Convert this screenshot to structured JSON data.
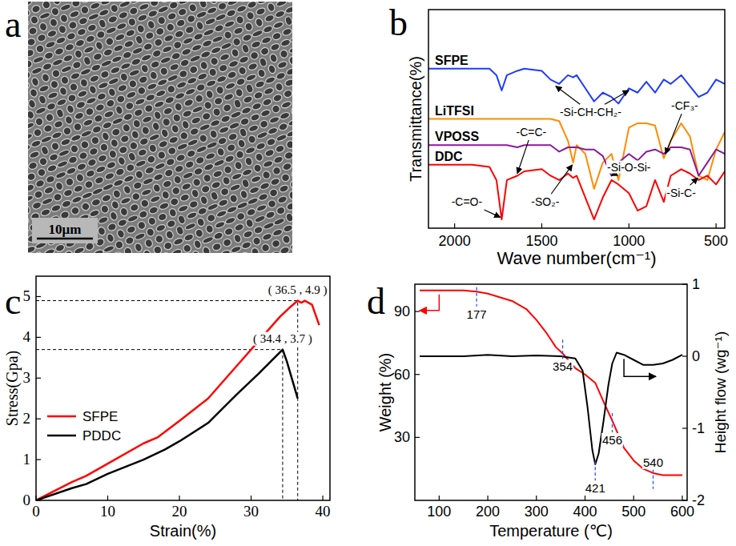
{
  "chart_data": [
    {
      "type": "image",
      "panel": "a",
      "scale_bar": "10μm"
    },
    {
      "type": "line",
      "panel": "b",
      "x_label": "Wave number(cm⁻¹)",
      "y_label": "Transmittance(%)",
      "xlim": [
        2150,
        450
      ],
      "xticks": [
        2000,
        1500,
        1000,
        500
      ],
      "ylim": [
        0,
        100
      ],
      "tick_labels": "x",
      "x": [
        2150,
        2000,
        1900,
        1800,
        1760,
        1730,
        1700,
        1640,
        1600,
        1500,
        1450,
        1400,
        1350,
        1320,
        1300,
        1250,
        1200,
        1150,
        1100,
        1060,
        1000,
        950,
        900,
        850,
        800,
        760,
        700,
        650,
        600,
        550,
        500,
        450
      ],
      "series": [
        {
          "name": "SFPE",
          "color": "#1f3cff",
          "values": [
            73,
            73,
            73,
            73,
            70,
            63,
            70,
            72,
            73,
            72,
            68,
            66,
            70,
            69,
            70,
            64,
            58,
            62,
            60,
            57,
            64,
            62,
            67,
            62,
            68,
            66,
            70,
            65,
            60,
            62,
            68,
            66
          ]
        },
        {
          "name": "LiTFSI",
          "color": "#ff8c00",
          "values": [
            50,
            50,
            50,
            50,
            50,
            50,
            50,
            50,
            50,
            50,
            50,
            49,
            40,
            30,
            38,
            34,
            18,
            30,
            34,
            22,
            46,
            48,
            48,
            47,
            32,
            40,
            48,
            42,
            24,
            22,
            36,
            44
          ]
        },
        {
          "name": "VPOSS",
          "color": "#8b1a9b",
          "values": [
            38,
            38,
            38,
            38,
            38,
            38,
            38,
            37,
            38,
            38,
            38,
            35,
            37,
            37,
            37,
            36,
            36,
            33,
            24,
            30,
            34,
            31,
            35,
            36,
            34,
            37,
            37,
            36,
            24,
            30,
            36,
            34
          ]
        },
        {
          "name": "DDC",
          "color": "#ff0000",
          "values": [
            29,
            29,
            29,
            28,
            22,
            4,
            22,
            24,
            26,
            27,
            24,
            22,
            25,
            23,
            24,
            14,
            4,
            14,
            22,
            20,
            16,
            8,
            10,
            22,
            12,
            24,
            27,
            25,
            22,
            24,
            20,
            26
          ]
        }
      ],
      "annotations": [
        {
          "text": "-Si-CH-CH₂-",
          "x": 1220,
          "y": 53,
          "arrows": [
            [
              1420,
              65
            ],
            [
              1000,
              63
            ]
          ]
        },
        {
          "text": "-SO₂-",
          "x": 1480,
          "y": 12,
          "arrows": [
            [
              1325,
              29
            ]
          ]
        },
        {
          "text": "-CF₃-",
          "x": 680,
          "y": 56,
          "arrows": [
            [
              790,
              34
            ]
          ]
        },
        {
          "text": "-Si-O-Si-",
          "x": 1000,
          "y": 28,
          "arrows": [
            [
              1100,
              24
            ]
          ]
        },
        {
          "text": "-Si-C-",
          "x": 700,
          "y": 16,
          "arrows": [
            [
              605,
              23
            ]
          ]
        },
        {
          "text": "-C=O-",
          "x": 1930,
          "y": 12,
          "arrows": [
            [
              1738,
              5
            ]
          ]
        },
        {
          "text": "-C=C-",
          "x": 1560,
          "y": 44,
          "arrows": [
            [
              1640,
              25
            ]
          ]
        }
      ]
    },
    {
      "type": "line",
      "panel": "c",
      "x_label": "Strain(%)",
      "y_label": "Stress(Gpa)",
      "xlim": [
        0,
        41
      ],
      "xticks": [
        0,
        10,
        20,
        30,
        40
      ],
      "ylim": [
        0,
        5.5
      ],
      "yticks": [
        0,
        1,
        2,
        3,
        4,
        5
      ],
      "legend": "left",
      "series": [
        {
          "name": "SFPE",
          "color": "#ff0000",
          "x": [
            0,
            5,
            7,
            10,
            15,
            17,
            20,
            24,
            28,
            31,
            34,
            35.5,
            36.5,
            37,
            37.5,
            38.5,
            39.5
          ],
          "values": [
            0,
            0.45,
            0.6,
            0.9,
            1.4,
            1.55,
            1.95,
            2.5,
            3.3,
            3.9,
            4.5,
            4.75,
            4.9,
            4.85,
            4.9,
            4.8,
            4.3
          ]
        },
        {
          "name": "PDDC",
          "color": "#000000",
          "x": [
            0,
            5,
            7,
            10,
            15,
            18,
            20,
            24,
            28,
            31,
            34.4,
            35,
            35.5,
            36,
            36.5
          ],
          "values": [
            0,
            0.3,
            0.4,
            0.65,
            1.0,
            1.25,
            1.45,
            1.9,
            2.6,
            3.1,
            3.7,
            3.4,
            3.1,
            2.8,
            2.5
          ]
        }
      ],
      "annotations": [
        {
          "text": "( 36.5 , 4.9 )",
          "x": 36.5,
          "y": 4.9
        },
        {
          "text": "( 34.4 , 3.7 )",
          "x": 34.4,
          "y": 3.7
        }
      ]
    },
    {
      "type": "line",
      "panel": "d",
      "x_label": "Temperature (℃)",
      "y_label": "Weight (%)",
      "y2_label": "Height flow (wg⁻¹)",
      "xlim": [
        50,
        610
      ],
      "xticks": [
        100,
        200,
        300,
        400,
        500,
        600
      ],
      "ylim": [
        0,
        103
      ],
      "yticks": [
        30,
        60,
        90
      ],
      "y2lim": [
        -2,
        1
      ],
      "y2ticks": [
        -2,
        -1,
        0,
        1
      ],
      "series": [
        {
          "color": "#ff0000",
          "x": [
            60,
            100,
            150,
            177,
            200,
            250,
            280,
            300,
            320,
            340,
            354,
            380,
            400,
            421,
            440,
            456,
            480,
            500,
            520,
            540,
            560,
            580,
            600
          ],
          "values": [
            100,
            100,
            100,
            99.5,
            98.5,
            95,
            91,
            86,
            80,
            73,
            70,
            63,
            60,
            56,
            46,
            38,
            25,
            19,
            15,
            13,
            12,
            12,
            12
          ]
        },
        {
          "color": "#000000",
          "axis": "y2",
          "x": [
            60,
            100,
            150,
            200,
            250,
            300,
            350,
            380,
            395,
            405,
            415,
            421,
            428,
            438,
            448,
            456,
            465,
            480,
            500,
            520,
            540,
            560,
            580,
            600
          ],
          "values": [
            0,
            0,
            0,
            0.02,
            0,
            0.01,
            0,
            -0.03,
            -0.2,
            -0.7,
            -1.3,
            -1.5,
            -1.35,
            -0.9,
            -0.4,
            -0.1,
            0.05,
            0.02,
            -0.05,
            -0.12,
            -0.12,
            -0.1,
            -0.05,
            0.02
          ]
        }
      ],
      "annotations": [
        {
          "text": "177",
          "x": 177,
          "y": 97
        },
        {
          "text": "354",
          "x": 354,
          "y": 72
        },
        {
          "text": "421",
          "x": 421,
          "y": 14
        },
        {
          "text": "456",
          "x": 456,
          "y": 37
        },
        {
          "text": "540",
          "x": 540,
          "y": 10
        }
      ]
    }
  ]
}
